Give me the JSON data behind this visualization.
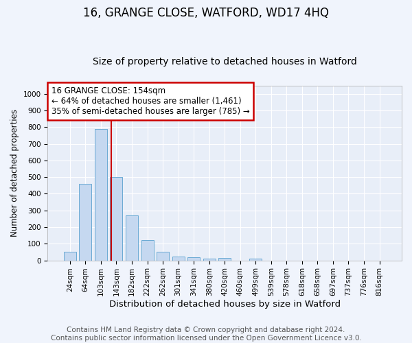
{
  "title1": "16, GRANGE CLOSE, WATFORD, WD17 4HQ",
  "title2": "Size of property relative to detached houses in Watford",
  "xlabel": "Distribution of detached houses by size in Watford",
  "ylabel": "Number of detached properties",
  "categories": [
    "24sqm",
    "64sqm",
    "103sqm",
    "143sqm",
    "182sqm",
    "222sqm",
    "262sqm",
    "301sqm",
    "341sqm",
    "380sqm",
    "420sqm",
    "460sqm",
    "499sqm",
    "539sqm",
    "578sqm",
    "618sqm",
    "658sqm",
    "697sqm",
    "737sqm",
    "776sqm",
    "816sqm"
  ],
  "values": [
    50,
    460,
    790,
    500,
    270,
    122,
    52,
    22,
    18,
    12,
    15,
    0,
    10,
    0,
    0,
    0,
    0,
    0,
    0,
    0,
    0
  ],
  "bar_color": "#c5d8f0",
  "bar_edge_color": "#6aaad4",
  "ylim": [
    0,
    1050
  ],
  "yticks": [
    0,
    100,
    200,
    300,
    400,
    500,
    600,
    700,
    800,
    900,
    1000
  ],
  "vline_x": 2.65,
  "vline_color": "#cc0000",
  "annotation_text": "16 GRANGE CLOSE: 154sqm\n← 64% of detached houses are smaller (1,461)\n35% of semi-detached houses are larger (785) →",
  "annotation_box_color": "#ffffff",
  "annotation_border_color": "#cc0000",
  "footer_line1": "Contains HM Land Registry data © Crown copyright and database right 2024.",
  "footer_line2": "Contains public sector information licensed under the Open Government Licence v3.0.",
  "background_color": "#f0f4fc",
  "plot_bg_color": "#e8eef8",
  "grid_color": "#ffffff",
  "title1_fontsize": 12,
  "title2_fontsize": 10,
  "xlabel_fontsize": 9.5,
  "ylabel_fontsize": 8.5,
  "tick_fontsize": 7.5,
  "footer_fontsize": 7.5,
  "annot_fontsize": 8.5
}
